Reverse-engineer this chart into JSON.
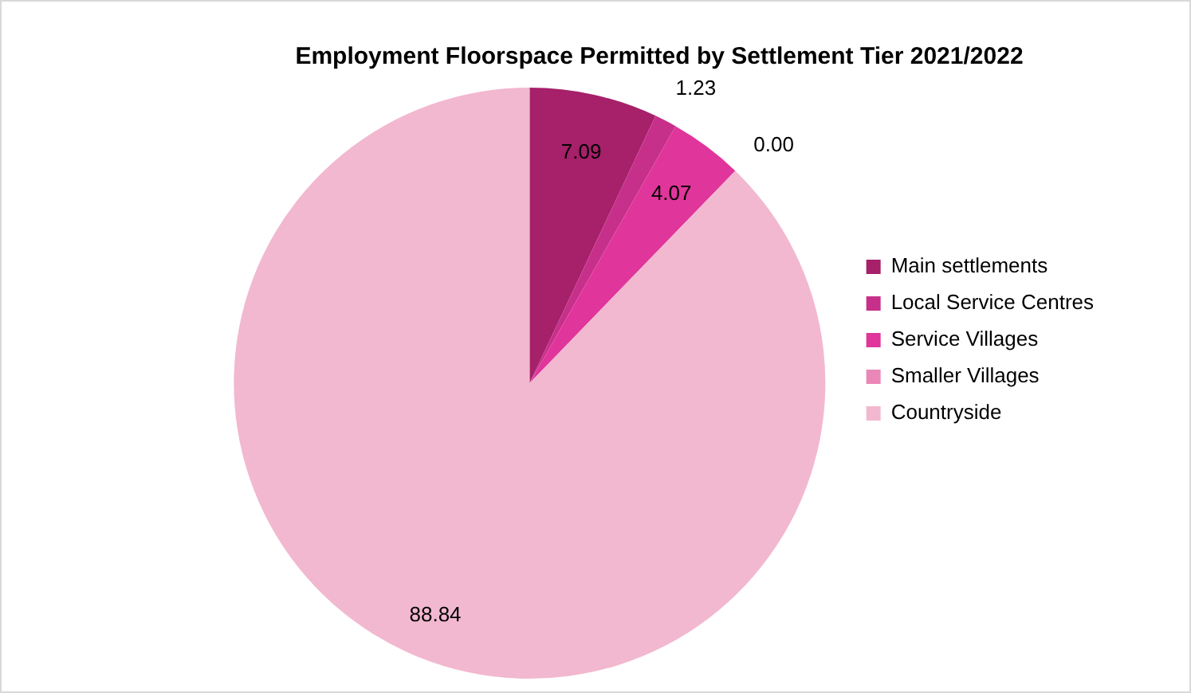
{
  "chart_data": {
    "type": "pie",
    "title": "Employment Floorspace Permitted by Settlement Tier 2021/2022",
    "categories": [
      "Main settlements",
      "Local Service Centres",
      "Service Villages",
      "Smaller Villages",
      "Countryside"
    ],
    "values": [
      7.09,
      1.23,
      4.07,
      0,
      88.84
    ],
    "colors": [
      "#a6206a",
      "#c7308a",
      "#e0359b",
      "#e987b8",
      "#f2b8cf"
    ],
    "value_labels": [
      "7.09",
      "1.23",
      "4.07",
      "0.00",
      "88.84"
    ],
    "legend": "right"
  }
}
